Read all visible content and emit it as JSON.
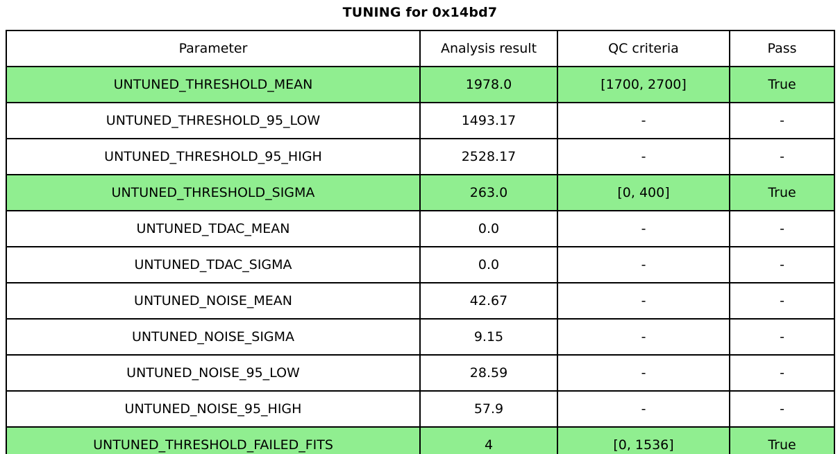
{
  "title": "TUNING for 0x14bd7",
  "colors": {
    "highlight_green": "#90EE90",
    "border": "#000000",
    "background": "#FFFFFF",
    "text": "#000000"
  },
  "chart_data": {
    "type": "table",
    "title": "TUNING for 0x14bd7",
    "columns": [
      "Parameter",
      "Analysis result",
      "QC criteria",
      "Pass"
    ],
    "rows": [
      {
        "cells": [
          "UNTUNED_THRESHOLD_MEAN",
          "1978.0",
          "[1700, 2700]",
          "True"
        ],
        "highlight": true
      },
      {
        "cells": [
          "UNTUNED_THRESHOLD_95_LOW",
          "1493.17",
          "-",
          "-"
        ],
        "highlight": false
      },
      {
        "cells": [
          "UNTUNED_THRESHOLD_95_HIGH",
          "2528.17",
          "-",
          "-"
        ],
        "highlight": false
      },
      {
        "cells": [
          "UNTUNED_THRESHOLD_SIGMA",
          "263.0",
          "[0, 400]",
          "True"
        ],
        "highlight": true
      },
      {
        "cells": [
          "UNTUNED_TDAC_MEAN",
          "0.0",
          "-",
          "-"
        ],
        "highlight": false
      },
      {
        "cells": [
          "UNTUNED_TDAC_SIGMA",
          "0.0",
          "-",
          "-"
        ],
        "highlight": false
      },
      {
        "cells": [
          "UNTUNED_NOISE_MEAN",
          "42.67",
          "-",
          "-"
        ],
        "highlight": false
      },
      {
        "cells": [
          "UNTUNED_NOISE_SIGMA",
          "9.15",
          "-",
          "-"
        ],
        "highlight": false
      },
      {
        "cells": [
          "UNTUNED_NOISE_95_LOW",
          "28.59",
          "-",
          "-"
        ],
        "highlight": false
      },
      {
        "cells": [
          "UNTUNED_NOISE_95_HIGH",
          "57.9",
          "-",
          "-"
        ],
        "highlight": false
      },
      {
        "cells": [
          "UNTUNED_THRESHOLD_FAILED_FITS",
          "4",
          "[0, 1536]",
          "True"
        ],
        "highlight": true
      }
    ],
    "highlighted_rows": [
      0,
      3,
      10
    ],
    "highlight_color": "#90EE90",
    "legend_position": "none",
    "grid": "table-borders"
  }
}
